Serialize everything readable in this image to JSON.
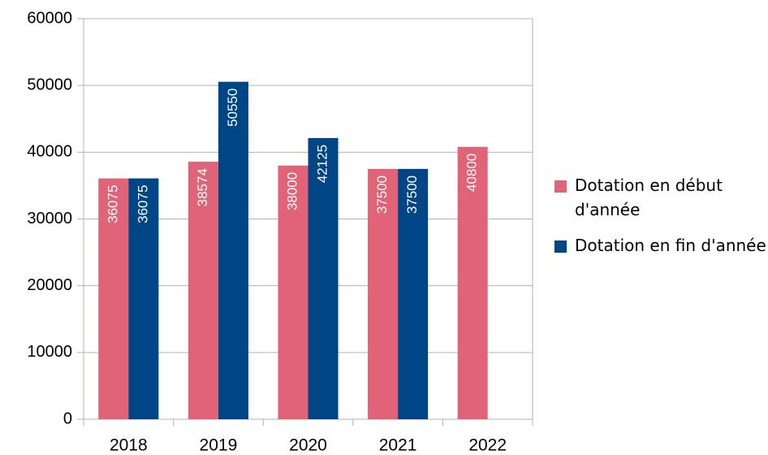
{
  "chart_data": {
    "type": "bar",
    "categories": [
      "2018",
      "2019",
      "2020",
      "2021",
      "2022"
    ],
    "series": [
      {
        "name": "Dotation en début d'année",
        "color": "#e06377",
        "values": [
          36075,
          38574,
          38000,
          37500,
          40800
        ]
      },
      {
        "name": "Dotation en fin d'année",
        "color": "#004586",
        "values": [
          36075,
          50550,
          42125,
          37500,
          null
        ]
      }
    ],
    "ylim": [
      0,
      60000
    ],
    "yticks": [
      0,
      10000,
      20000,
      30000,
      40000,
      50000,
      60000
    ],
    "grid": true,
    "legend": "right",
    "data_labels": true
  }
}
